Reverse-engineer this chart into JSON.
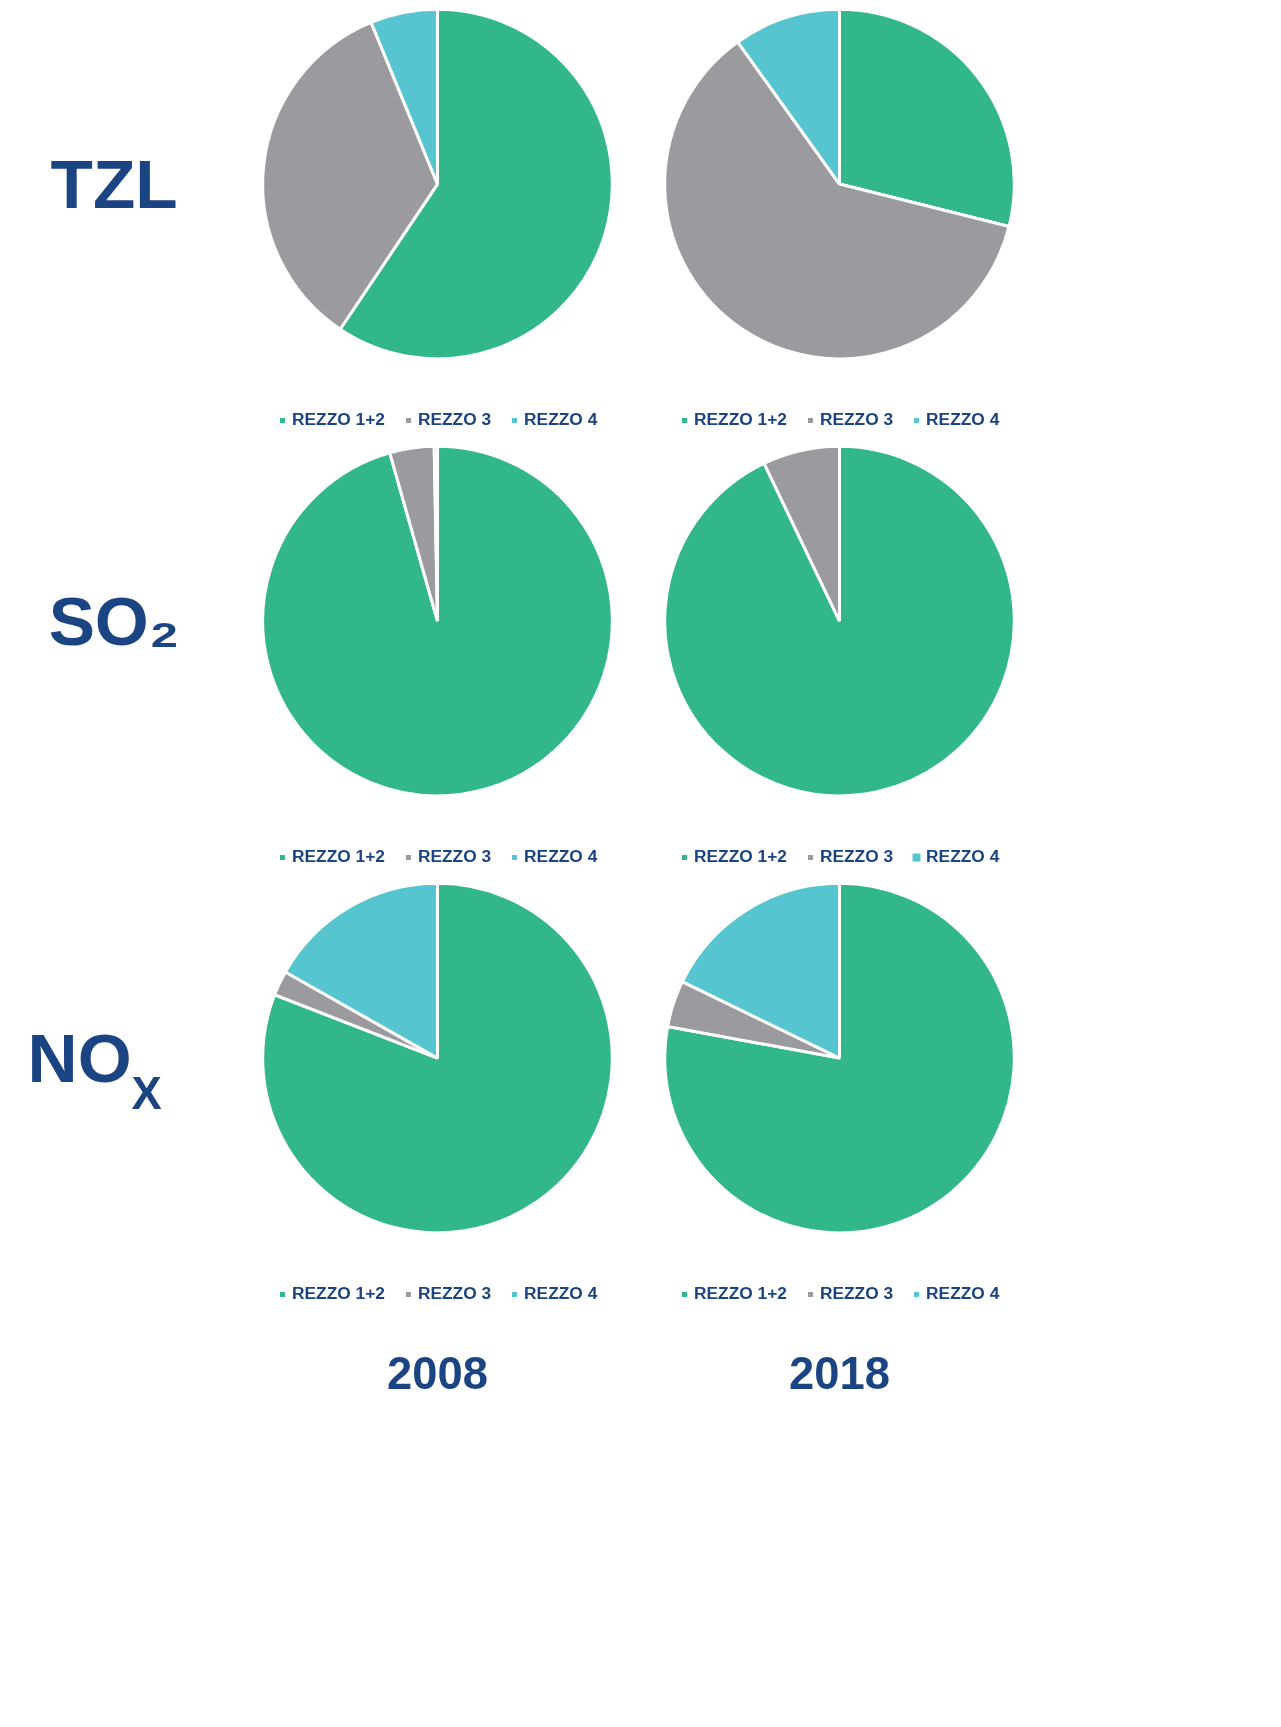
{
  "chart_data": [
    {
      "type": "pie",
      "ylabel": "TZL",
      "categories": [
        "REZZO 1+2",
        "REZZO 3",
        "REZZO 4"
      ],
      "values": [
        59.4,
        34.4,
        6.2
      ],
      "colors": [
        "#32b78a",
        "#9b9b9f",
        "#56c5d0"
      ],
      "legend": "bottom"
    },
    {
      "type": "pie",
      "categories": [
        "REZZO 1+2",
        "REZZO 3",
        "REZZO 4"
      ],
      "values": [
        28.9,
        61.2,
        9.9
      ],
      "colors": [
        "#32b78a",
        "#9b9b9f",
        "#56c5d0"
      ],
      "legend": "bottom"
    },
    {
      "type": "pie",
      "ylabel": "SO₂",
      "categories": [
        "REZZO 1+2",
        "REZZO 3",
        "REZZO 4"
      ],
      "values": [
        95.6,
        4.1,
        0.3
      ],
      "colors": [
        "#32b78a",
        "#9b9b9f",
        "#56c5d0"
      ],
      "legend": "bottom"
    },
    {
      "type": "pie",
      "categories": [
        "REZZO 1+2",
        "REZZO 3",
        "REZZO 4"
      ],
      "values": [
        92.9,
        7.1,
        0
      ],
      "colors": [
        "#32b78a",
        "#9b9b9f",
        "#56c5d0"
      ],
      "legend": "bottom"
    },
    {
      "type": "pie",
      "ylabel": "NO$_{X}$",
      "xlabel": "2008",
      "categories": [
        "REZZO 1+2",
        "REZZO 3",
        "REZZO 4"
      ],
      "values": [
        80.9,
        2.3,
        16.8
      ],
      "colors": [
        "#32b78a",
        "#9b9b9f",
        "#56c5d0"
      ],
      "legend": "bottom"
    },
    {
      "type": "pie",
      "xlabel": "2018",
      "categories": [
        "REZZO 1+2",
        "REZZO 3",
        "REZZO 4"
      ],
      "values": [
        77.9,
        4.3,
        17.8
      ],
      "colors": [
        "#32b78a",
        "#9b9b9f",
        "#56c5d0"
      ],
      "legend": "bottom"
    }
  ]
}
